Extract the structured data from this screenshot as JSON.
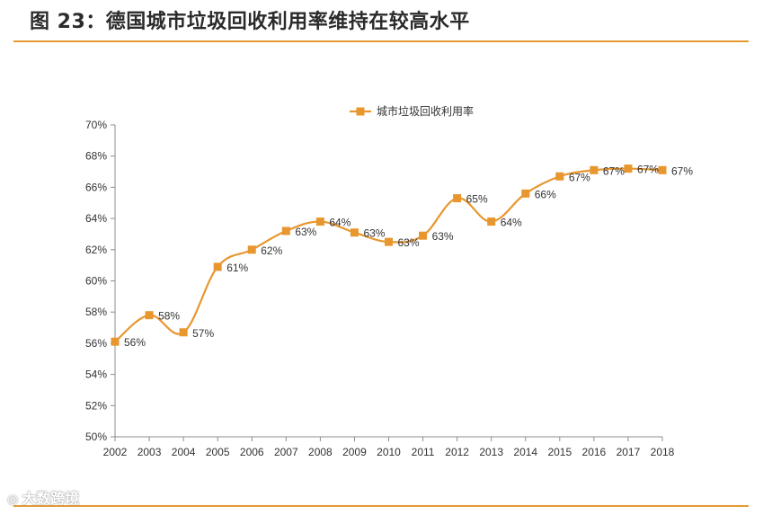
{
  "header": {
    "title": "图 23：德国城市垃圾回收利用率维持在较高水平"
  },
  "watermark": {
    "logo": "◎",
    "text": "大数跨境"
  },
  "chart_data": {
    "type": "line",
    "title": "",
    "xlabel": "",
    "ylabel": "",
    "ylim": [
      50,
      70
    ],
    "ystep": 2,
    "y_tick_format": "percent",
    "categories": [
      "2002",
      "2003",
      "2004",
      "2005",
      "2006",
      "2007",
      "2008",
      "2009",
      "2010",
      "2011",
      "2012",
      "2013",
      "2014",
      "2015",
      "2016",
      "2017",
      "2018"
    ],
    "series": [
      {
        "name": "城市垃圾回收利用率",
        "color": "#e8962e",
        "smooth": true,
        "marker": "square",
        "values": [
          56.1,
          57.8,
          56.7,
          60.9,
          62.0,
          63.2,
          63.8,
          63.1,
          62.5,
          62.9,
          65.3,
          63.8,
          65.6,
          66.7,
          67.1,
          67.2,
          67.1
        ],
        "data_labels": [
          "56%",
          "58%",
          "57%",
          "61%",
          "62%",
          "63%",
          "64%",
          "63%",
          "63%",
          "63%",
          "65%",
          "64%",
          "66%",
          "67%",
          "67%",
          "67%",
          "67%"
        ]
      }
    ],
    "legend": {
      "position": "top-center"
    },
    "grid": false
  }
}
